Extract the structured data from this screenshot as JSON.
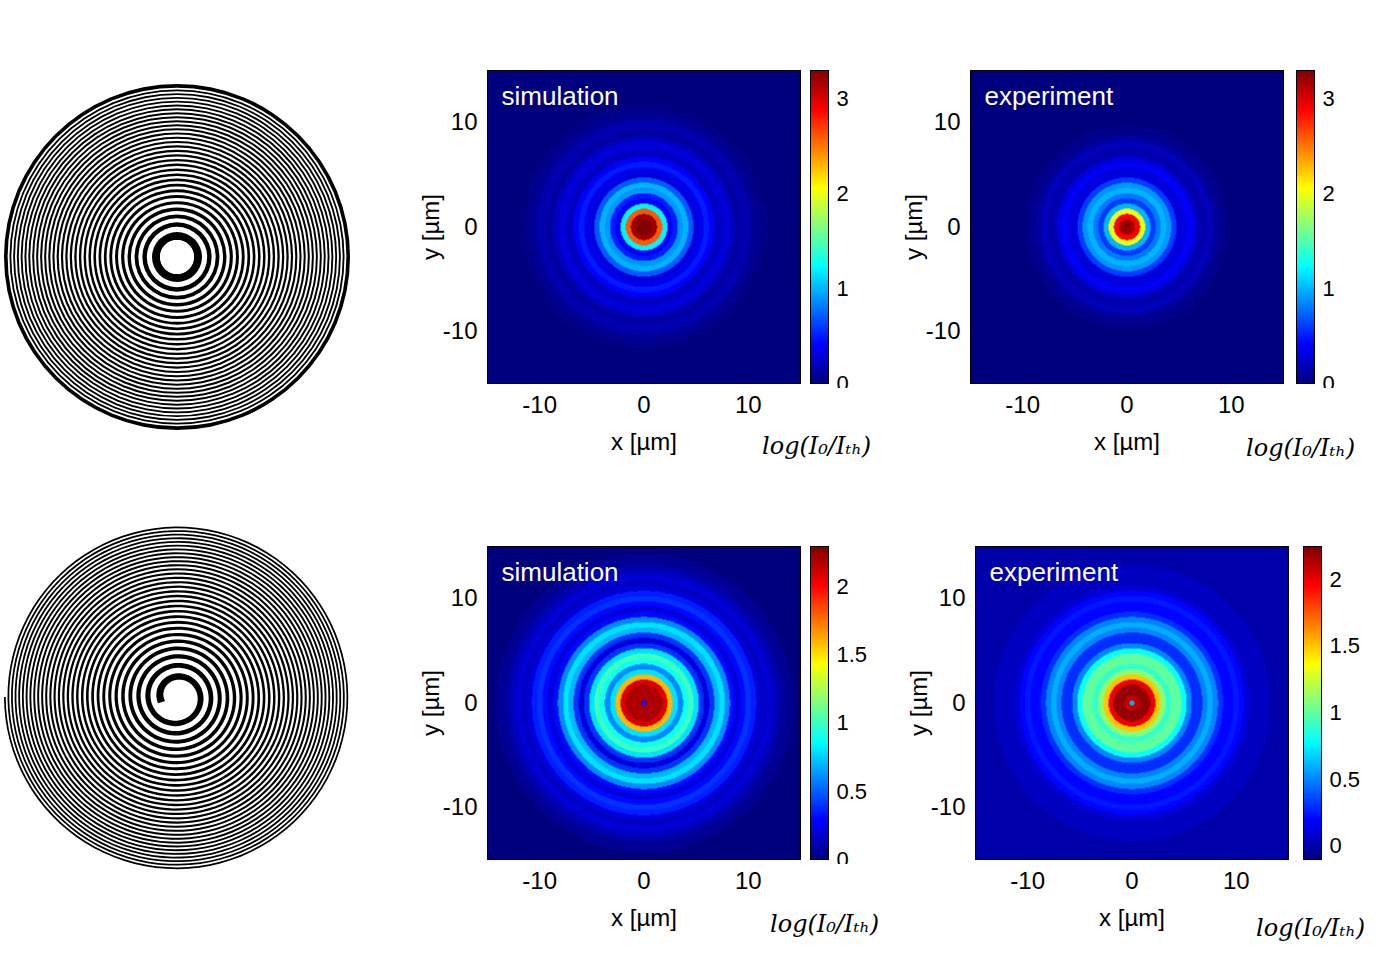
{
  "chart_data": [
    {
      "type": "heatmap",
      "title": "simulation",
      "xlabel": "x [µm]",
      "ylabel": "y [µm]",
      "xlim": [
        -15,
        15
      ],
      "ylim": [
        -15,
        15
      ],
      "xticks": [
        -10,
        0,
        10
      ],
      "yticks": [
        -10,
        0,
        10
      ],
      "radial_profile": {
        "r": [
          0,
          0.5,
          1,
          1.5,
          2,
          2.5,
          3,
          3.5,
          4,
          4.5,
          5,
          5.5,
          6,
          6.5,
          7,
          7.5,
          8,
          8.5,
          9,
          9.5,
          10,
          10.5,
          11,
          11.5,
          12,
          15
        ],
        "values": [
          3.3,
          3.3,
          3.2,
          2.6,
          1.2,
          0.4,
          0.5,
          0.9,
          1.0,
          0.7,
          0.3,
          0.35,
          0.5,
          0.4,
          0.2,
          0.25,
          0.3,
          0.2,
          0.1,
          0.15,
          0.15,
          0.08,
          0.05,
          0.02,
          0,
          0
        ]
      },
      "colorbar": {
        "label": "log(I₀/Iₜₕ)",
        "lim": [
          0,
          3.3
        ],
        "ticks": [
          0,
          1,
          2,
          3
        ]
      }
    },
    {
      "type": "heatmap",
      "title": "experiment",
      "xlabel": "x [µm]",
      "ylabel": "y [µm]",
      "xlim": [
        -15,
        15
      ],
      "ylim": [
        -15,
        15
      ],
      "xticks": [
        -10,
        0,
        10
      ],
      "yticks": [
        -10,
        0,
        10
      ],
      "radial_profile": {
        "r": [
          0,
          0.5,
          1,
          1.5,
          2,
          2.5,
          3,
          3.5,
          4,
          4.5,
          5,
          5.5,
          6,
          6.5,
          7,
          7.5,
          8,
          8.5,
          9,
          9.5,
          10,
          15
        ],
        "values": [
          3.3,
          3.2,
          2.9,
          2.0,
          1.0,
          0.6,
          0.8,
          1.0,
          0.9,
          0.6,
          0.3,
          0.3,
          0.4,
          0.3,
          0.15,
          0.15,
          0.2,
          0.1,
          0.05,
          0.03,
          0,
          0
        ]
      },
      "colorbar": {
        "label": "log(I₀/Iₜₕ)",
        "lim": [
          0,
          3.3
        ],
        "ticks": [
          0,
          1,
          2,
          3
        ]
      }
    },
    {
      "type": "heatmap",
      "title": "simulation",
      "xlabel": "x [µm]",
      "ylabel": "y [µm]",
      "xlim": [
        -15,
        15
      ],
      "ylim": [
        -15,
        15
      ],
      "xticks": [
        -10,
        0,
        10
      ],
      "yticks": [
        -10,
        0,
        10
      ],
      "radial_profile": {
        "r": [
          0,
          0.5,
          1,
          1.5,
          2,
          2.5,
          3,
          3.5,
          4,
          4.5,
          5,
          5.5,
          6,
          6.5,
          7,
          7.5,
          8,
          8.5,
          9,
          9.5,
          10,
          10.5,
          11,
          11.5,
          12,
          12.5,
          13,
          13.5,
          15
        ],
        "values": [
          0.3,
          2.2,
          2.2,
          2.2,
          2.1,
          1.6,
          0.8,
          0.6,
          0.9,
          1.0,
          0.8,
          0.4,
          0.2,
          0.4,
          0.7,
          0.8,
          0.6,
          0.3,
          0.2,
          0.3,
          0.4,
          0.35,
          0.2,
          0.15,
          0.2,
          0.15,
          0.1,
          0.05,
          0
        ]
      },
      "colorbar": {
        "label": "log(I₀/Iₜₕ)",
        "lim": [
          0,
          2.3
        ],
        "ticks": [
          0,
          0.5,
          1,
          1.5,
          2
        ]
      }
    },
    {
      "type": "heatmap",
      "title": "experiment",
      "xlabel": "x [µm]",
      "ylabel": "y [µm]",
      "xlim": [
        -15,
        15
      ],
      "ylim": [
        -15,
        15
      ],
      "xticks": [
        -10,
        0,
        10
      ],
      "yticks": [
        -10,
        0,
        10
      ],
      "radial_profile": {
        "r": [
          0,
          0.5,
          1,
          1.5,
          2,
          2.5,
          3,
          3.5,
          4,
          4.5,
          5,
          5.5,
          6,
          6.5,
          7,
          7.5,
          8,
          8.5,
          9,
          9.5,
          10,
          10.5,
          11,
          11.5,
          15
        ],
        "values": [
          0.6,
          2.1,
          2.2,
          2.2,
          2.0,
          1.5,
          1.1,
          0.9,
          1.0,
          1.0,
          0.8,
          0.5,
          0.3,
          0.3,
          0.5,
          0.6,
          0.5,
          0.3,
          0.2,
          0.2,
          0.25,
          0.2,
          0.1,
          0.05,
          0
        ]
      },
      "colorbar": {
        "label": "log(I₀/Iₜₕ)",
        "lim": [
          -0.1,
          2.25
        ],
        "ticks": [
          0,
          0.5,
          1,
          1.5,
          2
        ]
      }
    }
  ]
}
